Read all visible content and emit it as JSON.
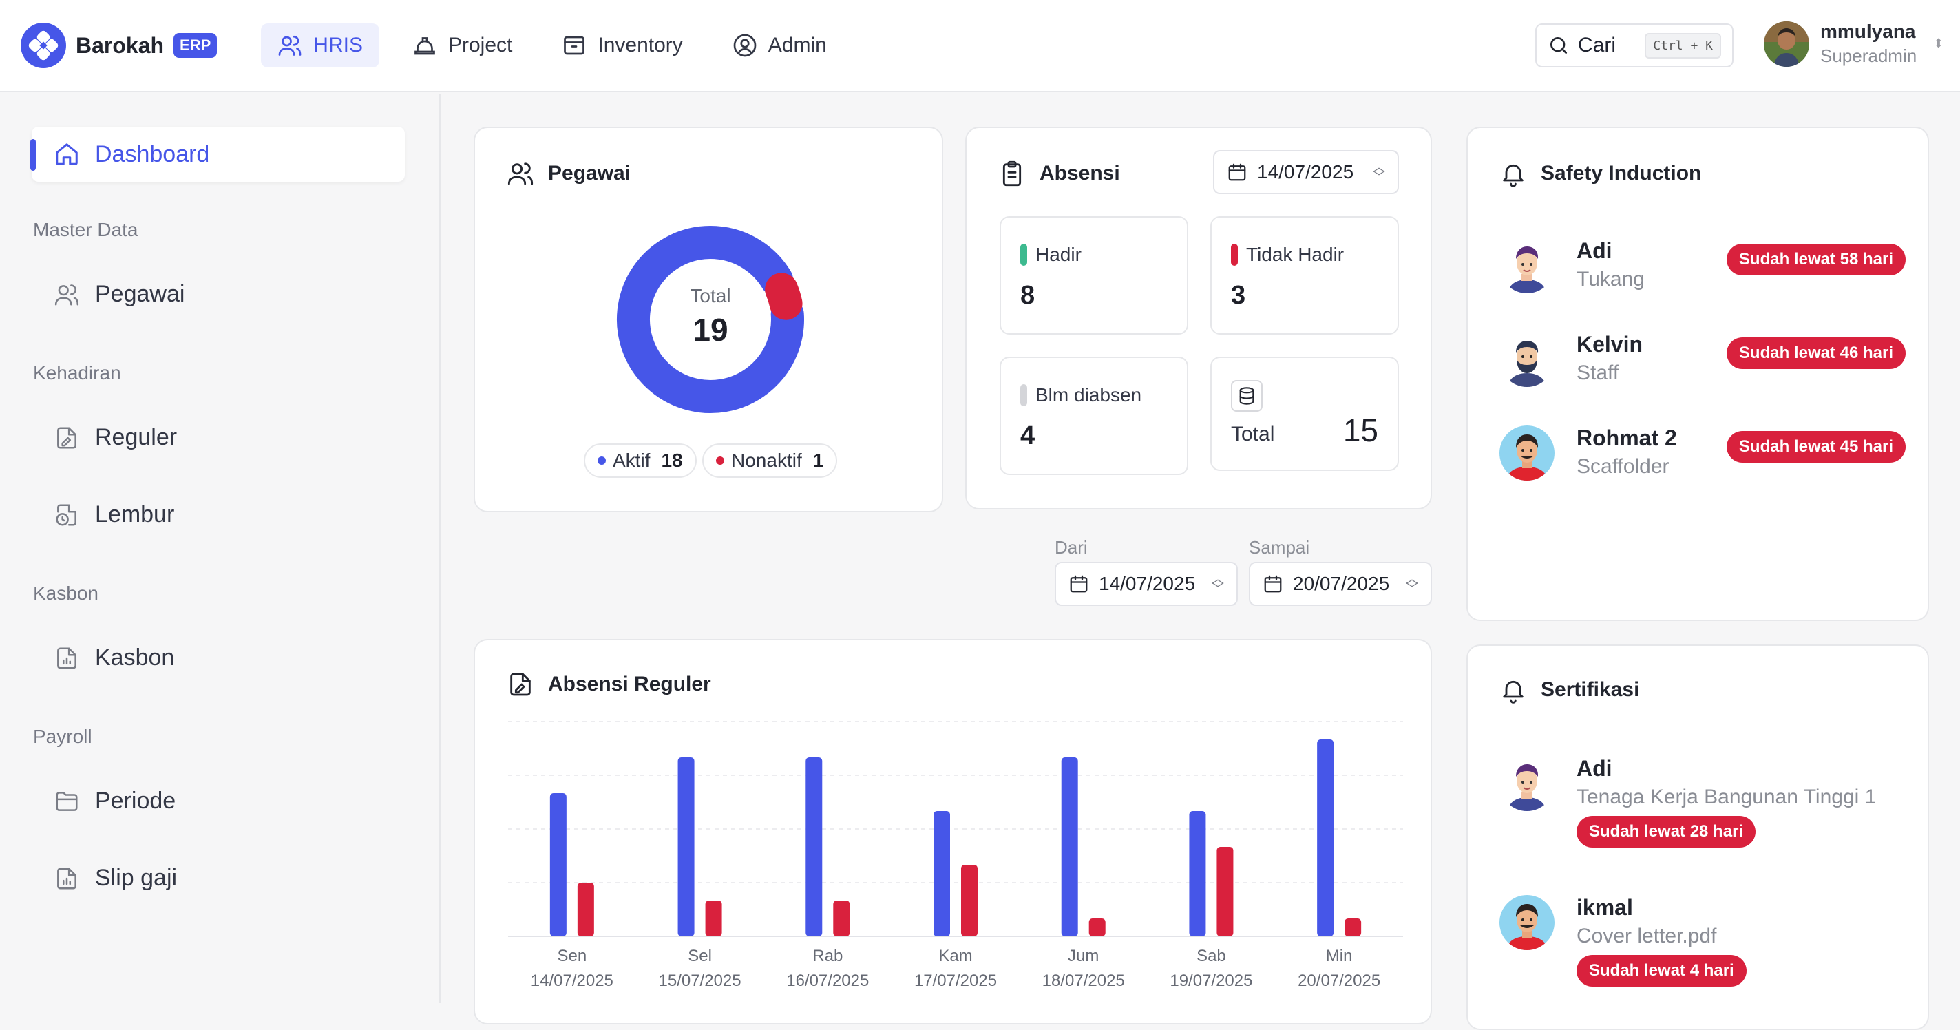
{
  "brand": {
    "name": "Barokah",
    "tag": "ERP"
  },
  "nav": [
    {
      "label": "HRIS",
      "icon": "users-icon",
      "active": true
    },
    {
      "label": "Project",
      "icon": "helmet-icon",
      "active": false
    },
    {
      "label": "Inventory",
      "icon": "box-icon",
      "active": false
    },
    {
      "label": "Admin",
      "icon": "user-circle-icon",
      "active": false
    }
  ],
  "search": {
    "label": "Cari",
    "shortcut": "Ctrl + K"
  },
  "user": {
    "name": "mmulyana",
    "role": "Superadmin"
  },
  "sidebar": {
    "active_item": {
      "label": "Dashboard",
      "icon": "home-icon"
    },
    "groups": [
      {
        "label": "Master Data",
        "items": [
          {
            "label": "Pegawai",
            "icon": "users-icon"
          }
        ]
      },
      {
        "label": "Kehadiran",
        "items": [
          {
            "label": "Reguler",
            "icon": "file-signature-icon"
          },
          {
            "label": "Lembur",
            "icon": "file-clock-icon"
          }
        ]
      },
      {
        "label": "Kasbon",
        "items": [
          {
            "label": "Kasbon",
            "icon": "file-chart-icon"
          }
        ]
      },
      {
        "label": "Payroll",
        "items": [
          {
            "label": "Periode",
            "icon": "folder-icon"
          },
          {
            "label": "Slip gaji",
            "icon": "file-chart-icon"
          }
        ]
      }
    ]
  },
  "pegawai": {
    "title": "Pegawai",
    "total_label": "Total",
    "total": 19,
    "legend": [
      {
        "label": "Aktif",
        "value": 18,
        "color": "#4656e8"
      },
      {
        "label": "Nonaktif",
        "value": 1,
        "color": "#d9213d"
      }
    ]
  },
  "absensi": {
    "title": "Absensi",
    "date": "14/07/2025",
    "stats": {
      "hadir": {
        "label": "Hadir",
        "value": 8,
        "color": "#3dba8f"
      },
      "tidak_hadir": {
        "label": "Tidak Hadir",
        "value": 3,
        "color": "#d9213d"
      },
      "belum": {
        "label": "Blm diabsen",
        "value": 4,
        "color": "#d4d5d9"
      },
      "total": {
        "label": "Total",
        "value": 15
      }
    }
  },
  "range": {
    "from_label": "Dari",
    "from": "14/07/2025",
    "to_label": "Sampai",
    "to": "20/07/2025"
  },
  "absensi_reguler": {
    "title": "Absensi Reguler"
  },
  "chart_data": {
    "type": "bar",
    "title": "Absensi Reguler",
    "categories": [
      {
        "day": "Sen",
        "date": "14/07/2025"
      },
      {
        "day": "Sel",
        "date": "15/07/2025"
      },
      {
        "day": "Rab",
        "date": "16/07/2025"
      },
      {
        "day": "Kam",
        "date": "17/07/2025"
      },
      {
        "day": "Jum",
        "date": "18/07/2025"
      },
      {
        "day": "Sab",
        "date": "19/07/2025"
      },
      {
        "day": "Min",
        "date": "20/07/2025"
      }
    ],
    "series": [
      {
        "values": [
          8,
          10,
          10,
          7,
          10,
          7,
          11
        ],
        "color": "#4656e8"
      },
      {
        "values": [
          3,
          2,
          2,
          4,
          1,
          5,
          1
        ],
        "color": "#d9213d"
      }
    ],
    "ylim": [
      0,
      12
    ],
    "grid": true
  },
  "safety": {
    "title": "Safety Induction",
    "items": [
      {
        "name": "Adi",
        "role": "Tukang",
        "badge": "Sudah lewat 58 hari",
        "avatar": "avatar-purple"
      },
      {
        "name": "Kelvin",
        "role": "Staff",
        "badge": "Sudah lewat 46 hari",
        "avatar": "avatar-bearded"
      },
      {
        "name": "Rohmat 2",
        "role": "Scaffolder",
        "badge": "Sudah lewat 45 hari",
        "avatar": "avatar-red"
      }
    ]
  },
  "sertifikasi": {
    "title": "Sertifikasi",
    "items": [
      {
        "name": "Adi",
        "doc": "Tenaga Kerja Bangunan Tinggi 1",
        "badge": "Sudah lewat 28 hari",
        "avatar": "avatar-purple"
      },
      {
        "name": "ikmal",
        "doc": "Cover letter.pdf",
        "badge": "Sudah lewat 4 hari",
        "avatar": "avatar-red"
      }
    ]
  }
}
